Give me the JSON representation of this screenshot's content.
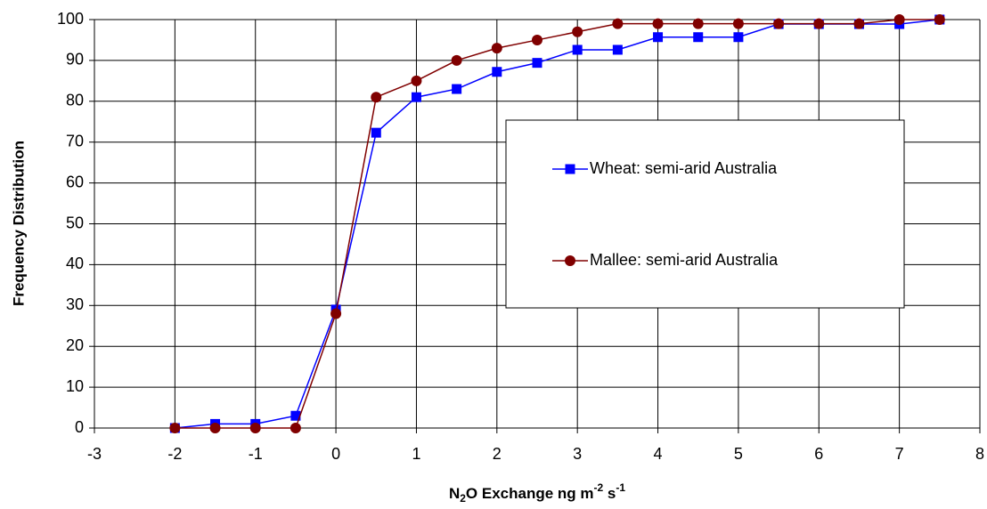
{
  "chart_data": {
    "type": "line",
    "xlabel_parts": [
      "N",
      "2",
      "O Exchange ng m",
      "-2",
      " s",
      "-1"
    ],
    "ylabel": "Frequency Distribution",
    "x": [
      -2,
      -1.5,
      -1,
      -0.5,
      0,
      0.5,
      1,
      1.5,
      2,
      2.5,
      3,
      3.5,
      4,
      4.5,
      5,
      5.5,
      6,
      6.5,
      7,
      7.5
    ],
    "series": [
      {
        "name": "Wheat: semi-arid Australia",
        "color": "#0000ff",
        "marker": "square",
        "values": [
          0,
          1,
          1,
          3,
          29,
          72.3,
          81,
          83,
          87.2,
          89.4,
          92.6,
          92.6,
          95.7,
          95.7,
          95.7,
          98.9,
          98.9,
          98.9,
          98.9,
          100
        ]
      },
      {
        "name": "Mallee: semi-arid Australia",
        "color": "#800000",
        "marker": "circle",
        "values": [
          0,
          0,
          0,
          0,
          28,
          81,
          85,
          90,
          93,
          95,
          97,
          99,
          99,
          99,
          99,
          99,
          99,
          99,
          100,
          100
        ]
      }
    ],
    "xlim": [
      -3,
      8
    ],
    "xticks": [
      -3,
      -2,
      -1,
      0,
      1,
      2,
      3,
      4,
      5,
      6,
      7,
      8
    ],
    "ylim": [
      0,
      100
    ],
    "yticks": [
      0,
      10,
      20,
      30,
      40,
      50,
      60,
      70,
      80,
      90,
      100
    ],
    "grid": true
  }
}
